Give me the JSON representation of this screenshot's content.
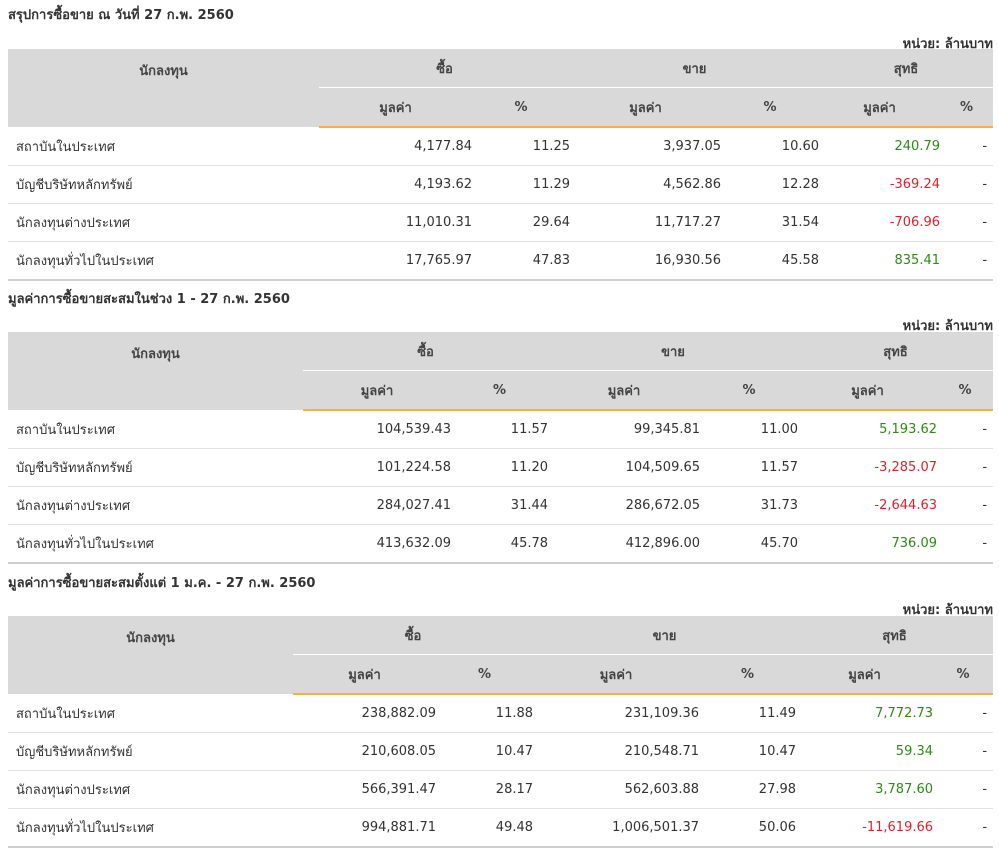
{
  "tables": [
    {
      "title": "สรุปการซื้อขาย ณ วันที่ 27 ก.พ. 2560",
      "unit": "หน่วย: ล้านบาท",
      "headers": {
        "investor": "นักลงทุน",
        "buy": "ซื้อ",
        "sell": "ขาย",
        "net": "สุทธิ",
        "value": "มูลค่า",
        "percent": "%"
      },
      "rows": [
        {
          "name": "สถาบันในประเทศ",
          "buy_value": "4,177.84",
          "buy_pct": "11.25",
          "sell_value": "3,937.05",
          "sell_pct": "10.60",
          "net_value": "240.79",
          "net_pct": "-",
          "net_sign": "pos"
        },
        {
          "name": "บัญชีบริษัทหลักทรัพย์",
          "buy_value": "4,193.62",
          "buy_pct": "11.29",
          "sell_value": "4,562.86",
          "sell_pct": "12.28",
          "net_value": "-369.24",
          "net_pct": "-",
          "net_sign": "neg"
        },
        {
          "name": "นักลงทุนต่างประเทศ",
          "buy_value": "11,010.31",
          "buy_pct": "29.64",
          "sell_value": "11,717.27",
          "sell_pct": "31.54",
          "net_value": "-706.96",
          "net_pct": "-",
          "net_sign": "neg"
        },
        {
          "name": "นักลงทุนทั่วไปในประเทศ",
          "buy_value": "17,765.97",
          "buy_pct": "47.83",
          "sell_value": "16,930.56",
          "sell_pct": "45.58",
          "net_value": "835.41",
          "net_pct": "-",
          "net_sign": "pos"
        }
      ]
    },
    {
      "title": "มูลค่าการซื้อขายสะสมในช่วง 1 - 27 ก.พ. 2560",
      "unit": "หน่วย: ล้านบาท",
      "headers": {
        "investor": "นักลงทุน",
        "buy": "ซื้อ",
        "sell": "ขาย",
        "net": "สุทธิ",
        "value": "มูลค่า",
        "percent": "%"
      },
      "rows": [
        {
          "name": "สถาบันในประเทศ",
          "buy_value": "104,539.43",
          "buy_pct": "11.57",
          "sell_value": "99,345.81",
          "sell_pct": "11.00",
          "net_value": "5,193.62",
          "net_pct": "-",
          "net_sign": "pos"
        },
        {
          "name": "บัญชีบริษัทหลักทรัพย์",
          "buy_value": "101,224.58",
          "buy_pct": "11.20",
          "sell_value": "104,509.65",
          "sell_pct": "11.57",
          "net_value": "-3,285.07",
          "net_pct": "-",
          "net_sign": "neg"
        },
        {
          "name": "นักลงทุนต่างประเทศ",
          "buy_value": "284,027.41",
          "buy_pct": "31.44",
          "sell_value": "286,672.05",
          "sell_pct": "31.73",
          "net_value": "-2,644.63",
          "net_pct": "-",
          "net_sign": "neg"
        },
        {
          "name": "นักลงทุนทั่วไปในประเทศ",
          "buy_value": "413,632.09",
          "buy_pct": "45.78",
          "sell_value": "412,896.00",
          "sell_pct": "45.70",
          "net_value": "736.09",
          "net_pct": "-",
          "net_sign": "pos"
        }
      ]
    },
    {
      "title": "มูลค่าการซื้อขายสะสมตั้งแต่ 1 ม.ค. - 27 ก.พ. 2560",
      "unit": "หน่วย: ล้านบาท",
      "headers": {
        "investor": "นักลงทุน",
        "buy": "ซื้อ",
        "sell": "ขาย",
        "net": "สุทธิ",
        "value": "มูลค่า",
        "percent": "%"
      },
      "rows": [
        {
          "name": "สถาบันในประเทศ",
          "buy_value": "238,882.09",
          "buy_pct": "11.88",
          "sell_value": "231,109.36",
          "sell_pct": "11.49",
          "net_value": "7,772.73",
          "net_pct": "-",
          "net_sign": "pos"
        },
        {
          "name": "บัญชีบริษัทหลักทรัพย์",
          "buy_value": "210,608.05",
          "buy_pct": "10.47",
          "sell_value": "210,548.71",
          "sell_pct": "10.47",
          "net_value": "59.34",
          "net_pct": "-",
          "net_sign": "pos"
        },
        {
          "name": "นักลงทุนต่างประเทศ",
          "buy_value": "566,391.47",
          "buy_pct": "28.17",
          "sell_value": "562,603.88",
          "sell_pct": "27.98",
          "net_value": "3,787.60",
          "net_pct": "-",
          "net_sign": "pos"
        },
        {
          "name": "นักลงทุนทั่วไปในประเทศ",
          "buy_value": "994,881.71",
          "buy_pct": "49.48",
          "sell_value": "1,006,501.37",
          "sell_pct": "50.06",
          "net_value": "-11,619.66",
          "net_pct": "-",
          "net_sign": "neg"
        }
      ]
    }
  ],
  "colors": {
    "positive": "#2e8b12",
    "negative": "#e0202a",
    "header_bg": "#d9d9d9",
    "accent": "#f5b041"
  }
}
